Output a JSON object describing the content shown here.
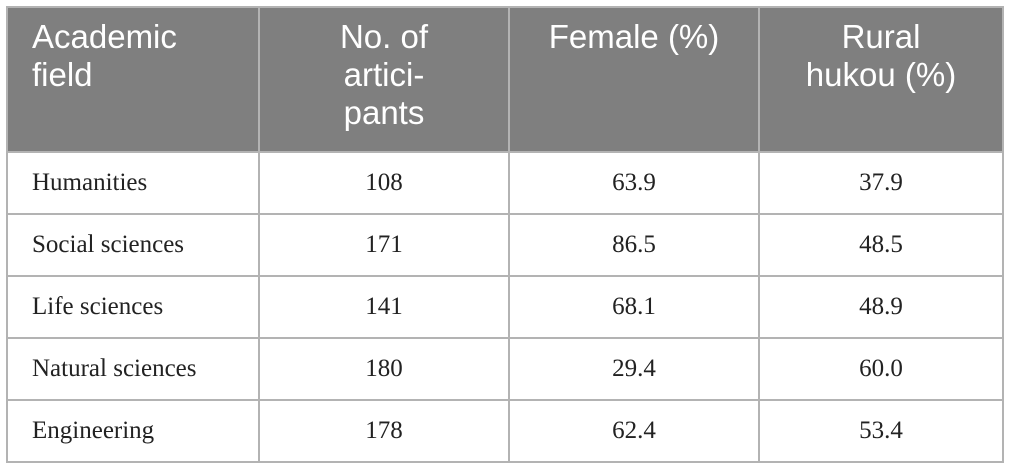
{
  "table": {
    "headers": [
      "Academic\nfield",
      "No. of\nartici-\npants",
      "Female (%)",
      "Rural\nhukou (%)"
    ],
    "rows": [
      [
        "Humanities",
        "108",
        "63.9",
        "37.9"
      ],
      [
        "Social sciences",
        "171",
        "86.5",
        "48.5"
      ],
      [
        "Life sciences",
        "141",
        "68.1",
        "48.9"
      ],
      [
        "Natural sciences",
        "180",
        "29.4",
        "60.0"
      ],
      [
        "Engineering",
        "178",
        "62.4",
        "53.4"
      ]
    ]
  },
  "colors": {
    "header_bg": "#7f7f7f",
    "header_text": "#ffffff",
    "grid": "#b3b3b3"
  }
}
